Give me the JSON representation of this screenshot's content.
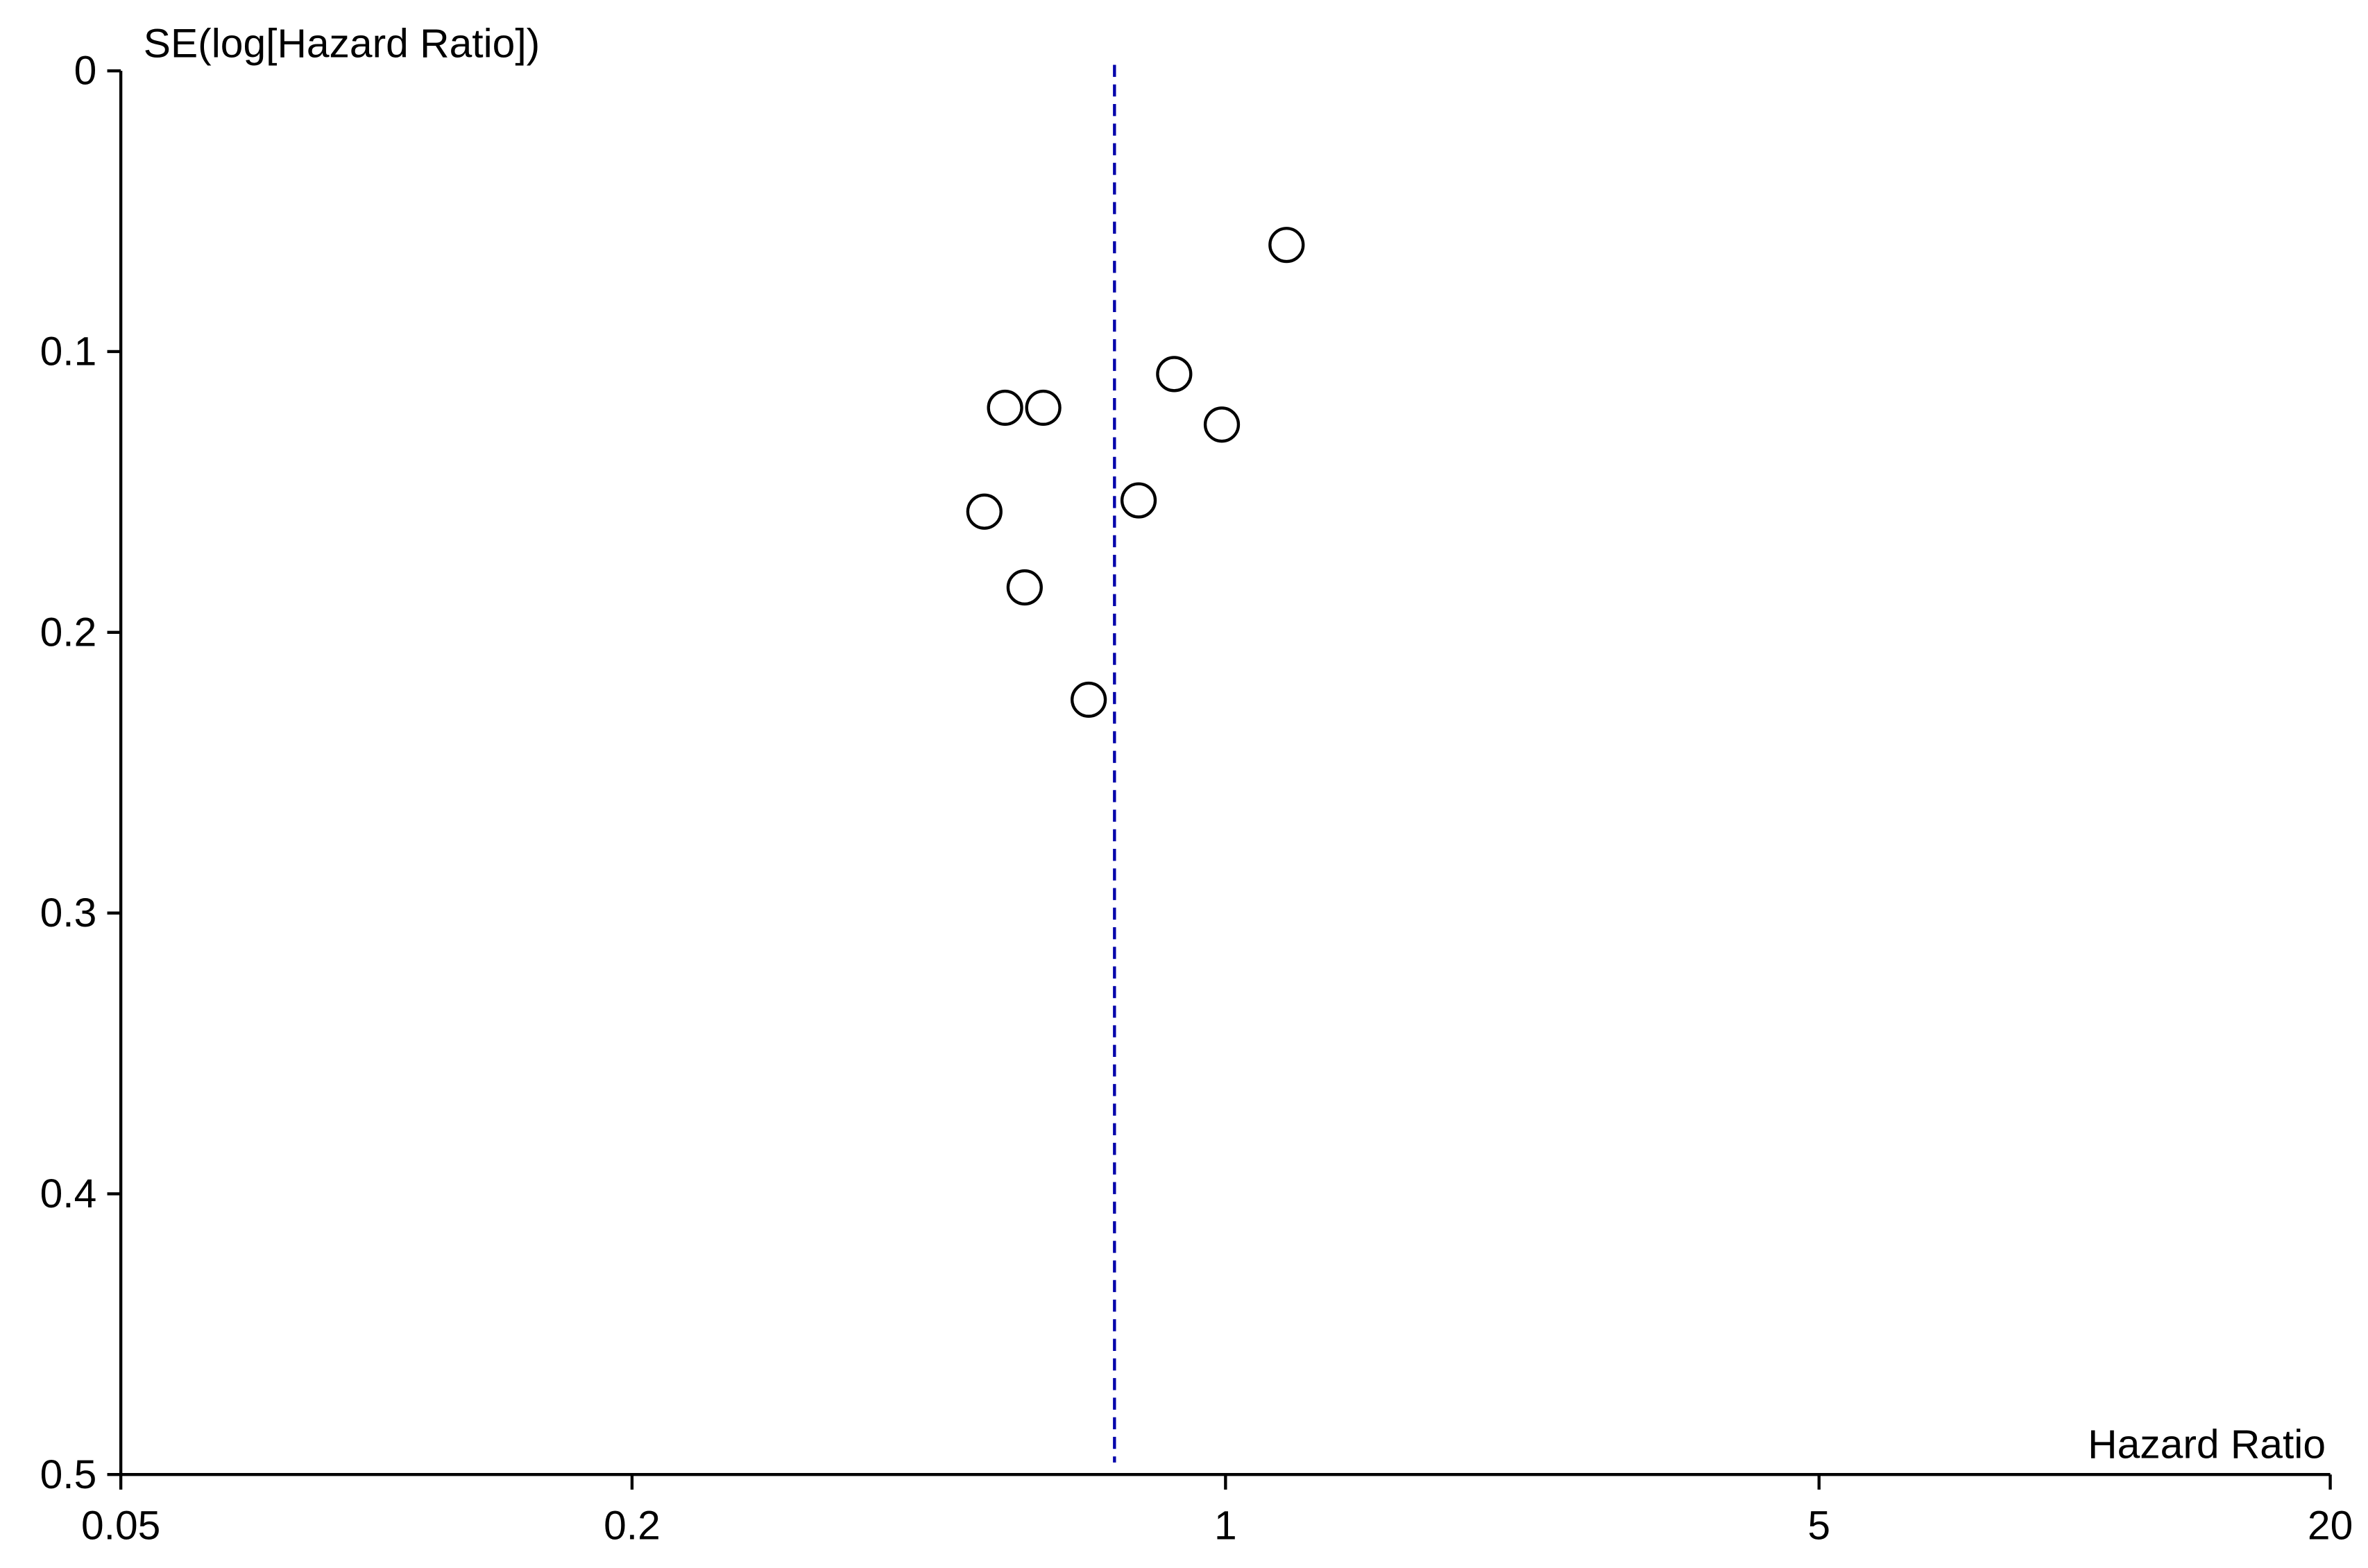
{
  "chart_data": {
    "type": "scatter",
    "x_label": "Hazard Ratio",
    "y_label": "SE(log[Hazard Ratio])",
    "x_log": true,
    "y_inverted": true,
    "xlim": [
      0.05,
      20
    ],
    "xticks": [
      0.05,
      0.2,
      1,
      5,
      20
    ],
    "ylim": [
      0,
      0.5
    ],
    "yticks": [
      0,
      0.1,
      0.2,
      0.3,
      0.4,
      0.5
    ],
    "x": [
      1.18,
      0.87,
      0.99,
      0.55,
      0.61,
      0.79,
      0.52,
      0.58,
      0.69
    ],
    "values": [
      0.062,
      0.108,
      0.126,
      0.12,
      0.12,
      0.153,
      0.157,
      0.184,
      0.224
    ],
    "color": "#000000",
    "reference_line": 0.74,
    "reference_color": "#0000aa"
  }
}
